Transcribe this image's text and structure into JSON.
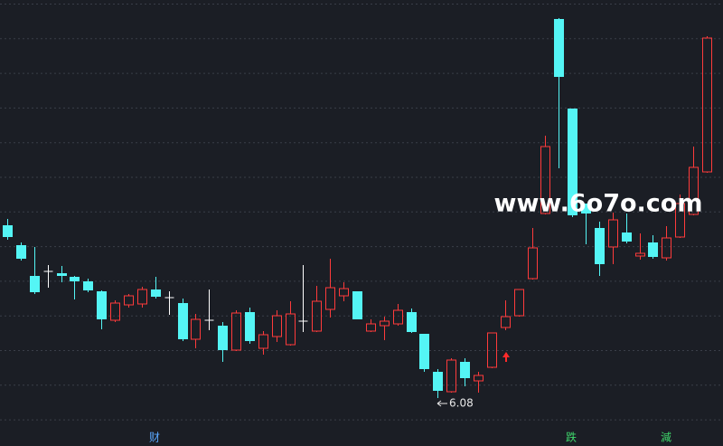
{
  "chart_data": {
    "type": "candlestick",
    "open": [
      7.99,
      7.77,
      7.43,
      7.48,
      7.46,
      7.42,
      7.37,
      7.26,
      6.94,
      7.11,
      7.12,
      7.28,
      7.19,
      7.13,
      6.73,
      6.94,
      6.88,
      6.61,
      7.03,
      6.63,
      6.76,
      6.67,
      6.93,
      6.82,
      7.06,
      7.21,
      7.26,
      6.82,
      6.88,
      6.9,
      7.03,
      6.79,
      6.37,
      6.15,
      6.48,
      6.27,
      6.42,
      6.86,
      6.99,
      7.4,
      8.12,
      10.27,
      9.28,
      8.23,
      7.96,
      7.75,
      7.91,
      7.65,
      7.8,
      7.63,
      7.86,
      8.11,
      8.58
    ],
    "high": [
      8.06,
      7.8,
      7.75,
      7.55,
      7.54,
      7.43,
      7.4,
      7.27,
      7.16,
      7.23,
      7.31,
      7.42,
      7.26,
      7.18,
      7.01,
      7.28,
      6.92,
      7.05,
      7.08,
      6.82,
      7.05,
      7.15,
      7.55,
      7.32,
      7.62,
      7.36,
      7.26,
      6.95,
      6.98,
      7.12,
      7.07,
      6.79,
      6.4,
      6.52,
      6.52,
      6.37,
      6.8,
      7.16,
      7.28,
      7.96,
      8.98,
      10.28,
      9.28,
      8.23,
      8.03,
      8.13,
      8.12,
      7.9,
      7.88,
      7.98,
      8.33,
      8.86,
      10.08
    ],
    "low": [
      7.83,
      7.6,
      7.23,
      7.3,
      7.36,
      7.17,
      7.25,
      6.84,
      6.92,
      7.08,
      7.08,
      7.18,
      7.0,
      6.71,
      6.63,
      6.83,
      6.48,
      6.6,
      6.68,
      6.56,
      6.7,
      6.66,
      6.81,
      6.81,
      6.97,
      7.15,
      6.95,
      6.81,
      6.72,
      6.88,
      6.8,
      6.37,
      6.08,
      6.14,
      6.21,
      6.14,
      6.41,
      6.83,
      6.98,
      7.39,
      8.11,
      8.62,
      8.08,
      7.78,
      7.43,
      7.56,
      7.79,
      7.61,
      7.62,
      7.6,
      7.85,
      8.1,
      8.57
    ],
    "close": [
      7.86,
      7.62,
      7.25,
      7.48,
      7.43,
      7.37,
      7.27,
      6.95,
      7.13,
      7.21,
      7.28,
      7.2,
      7.19,
      6.73,
      6.95,
      6.94,
      6.61,
      7.02,
      6.71,
      6.78,
      6.99,
      7.01,
      6.93,
      7.15,
      7.3,
      7.29,
      6.95,
      6.9,
      6.93,
      7.05,
      6.81,
      6.4,
      6.16,
      6.5,
      6.3,
      6.33,
      6.8,
      6.98,
      7.28,
      7.74,
      8.86,
      9.63,
      8.1,
      8.12,
      7.56,
      8.05,
      7.81,
      7.68,
      7.64,
      7.85,
      8.23,
      8.63,
      10.06
    ],
    "ylim": [
      5.55,
      10.48
    ],
    "up_color": "#ff3b3b",
    "down_color": "#54f5f5",
    "flat_color": "#ffffff",
    "low_marker": 6.08,
    "watermark": "www.6o7o.com",
    "signals": [
      "财",
      "跌",
      "減"
    ]
  }
}
